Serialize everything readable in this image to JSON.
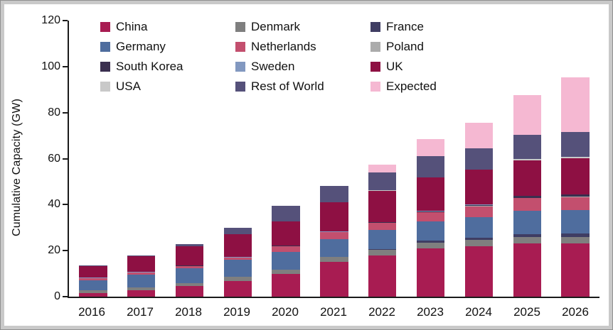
{
  "chart_data": {
    "type": "bar",
    "stacked": true,
    "title": "",
    "xlabel": "",
    "ylabel": "Cumulative Capacity (GW)",
    "ylim": [
      0,
      120
    ],
    "yticks": [
      0,
      20,
      40,
      60,
      80,
      100,
      120
    ],
    "grid": false,
    "legend_position": "top-left-inside",
    "categories": [
      "2016",
      "2017",
      "2018",
      "2019",
      "2020",
      "2021",
      "2022",
      "2023",
      "2024",
      "2025",
      "2026"
    ],
    "totals": [
      13.5,
      17.8,
      23.0,
      30.0,
      39.5,
      48.0,
      57.5,
      68.5,
      75.5,
      87.5,
      95.5
    ],
    "series": [
      {
        "name": "China",
        "color": "#A81C52",
        "values": [
          1.6,
          2.8,
          4.6,
          6.8,
          10.0,
          15.0,
          18.0,
          21.0,
          22.0,
          23.0,
          23.2
        ]
      },
      {
        "name": "Denmark",
        "color": "#7F7F7F",
        "values": [
          1.3,
          1.3,
          1.3,
          1.7,
          1.7,
          2.3,
          2.3,
          2.5,
          2.6,
          2.8,
          2.8
        ]
      },
      {
        "name": "France",
        "color": "#3F3D63",
        "values": [
          0,
          0,
          0,
          0,
          0,
          0,
          0.5,
          0.8,
          1.0,
          1.5,
          1.6
        ]
      },
      {
        "name": "Germany",
        "color": "#4F6D9E",
        "values": [
          4.1,
          5.4,
          6.4,
          7.4,
          7.7,
          7.7,
          8.1,
          8.4,
          9.0,
          10.0,
          10.1
        ]
      },
      {
        "name": "Netherlands",
        "color": "#C34F6E",
        "values": [
          1.1,
          1.1,
          1.1,
          1.1,
          2.6,
          3.0,
          3.2,
          4.0,
          4.7,
          5.5,
          5.6
        ]
      },
      {
        "name": "Poland",
        "color": "#ABABAB",
        "values": [
          0,
          0,
          0,
          0,
          0,
          0,
          0,
          0,
          0.1,
          0.1,
          0.1
        ]
      },
      {
        "name": "South Korea",
        "color": "#3A2F4F",
        "values": [
          0,
          0,
          0.1,
          0.1,
          0.1,
          0.1,
          0.2,
          0.3,
          0.5,
          0.8,
          0.9
        ]
      },
      {
        "name": "Sweden",
        "color": "#8298C0",
        "values": [
          0.2,
          0.2,
          0.2,
          0.2,
          0.2,
          0.2,
          0.2,
          0.2,
          0.2,
          0.2,
          0.2
        ]
      },
      {
        "name": "UK",
        "color": "#8E1043",
        "values": [
          5.1,
          6.8,
          8.2,
          9.9,
          10.4,
          12.7,
          13.6,
          14.5,
          15.0,
          15.5,
          15.7
        ]
      },
      {
        "name": "USA",
        "color": "#C9C9C9",
        "values": [
          0,
          0,
          0,
          0,
          0.1,
          0.1,
          0.1,
          0.1,
          0.2,
          0.5,
          0.6
        ]
      },
      {
        "name": "Rest of World",
        "color": "#55517A",
        "values": [
          0.1,
          0.2,
          1.1,
          2.8,
          6.7,
          6.9,
          7.8,
          9.2,
          9.2,
          10.6,
          10.7
        ]
      },
      {
        "name": "Expected",
        "color": "#F5B8D2",
        "values": [
          0,
          0,
          0,
          0,
          0,
          0,
          3.5,
          7.5,
          11.0,
          17.0,
          24.0
        ]
      }
    ]
  }
}
